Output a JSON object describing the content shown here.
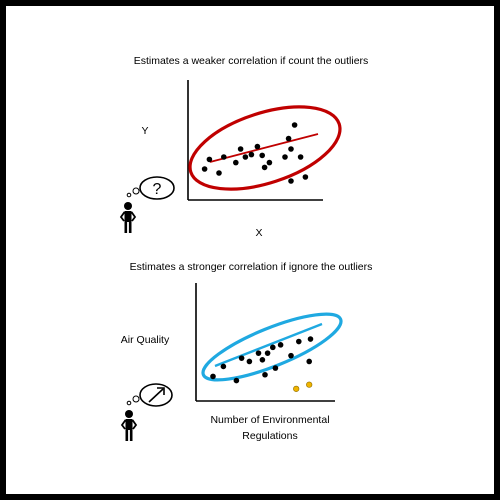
{
  "frame": {
    "background": "#000000",
    "panel": "#ffffff"
  },
  "top_panel": {
    "title": "Estimates a weaker correlation if count the outliers",
    "y_label": "Y",
    "x_label": "X",
    "thought_symbol": "?",
    "ellipse_color": "#c00000",
    "trend_color": "#c00000",
    "points": [
      [
        0.08,
        0.2
      ],
      [
        0.12,
        0.32
      ],
      [
        0.2,
        0.15
      ],
      [
        0.24,
        0.35
      ],
      [
        0.34,
        0.28
      ],
      [
        0.38,
        0.45
      ],
      [
        0.42,
        0.35
      ],
      [
        0.47,
        0.38
      ],
      [
        0.52,
        0.48
      ],
      [
        0.56,
        0.37
      ],
      [
        0.58,
        0.22
      ],
      [
        0.62,
        0.28
      ],
      [
        0.75,
        0.35
      ],
      [
        0.78,
        0.58
      ],
      [
        0.8,
        0.45
      ],
      [
        0.83,
        0.75
      ],
      [
        0.88,
        0.35
      ],
      [
        0.8,
        0.05
      ],
      [
        0.92,
        0.1
      ]
    ]
  },
  "bottom_panel": {
    "title": "Estimates a stronger correlation if ignore the outliers",
    "y_label": "Air Quality",
    "x_label_line1": "Number of Environmental",
    "x_label_line2": "Regulations",
    "thought_symbol": "arrow-up-right",
    "ellipse_color": "#1fa9e1",
    "trend_color": "#1fa9e1",
    "outlier_color": "#f0b400",
    "points": [
      [
        0.1,
        0.2
      ],
      [
        0.18,
        0.32
      ],
      [
        0.28,
        0.15
      ],
      [
        0.32,
        0.42
      ],
      [
        0.38,
        0.38
      ],
      [
        0.45,
        0.48
      ],
      [
        0.48,
        0.4
      ],
      [
        0.52,
        0.48
      ],
      [
        0.56,
        0.55
      ],
      [
        0.62,
        0.58
      ],
      [
        0.5,
        0.22
      ],
      [
        0.58,
        0.3
      ],
      [
        0.7,
        0.45
      ],
      [
        0.76,
        0.62
      ],
      [
        0.85,
        0.65
      ],
      [
        0.84,
        0.38
      ]
    ],
    "outliers": [
      [
        0.74,
        0.05
      ],
      [
        0.84,
        0.1
      ]
    ]
  }
}
